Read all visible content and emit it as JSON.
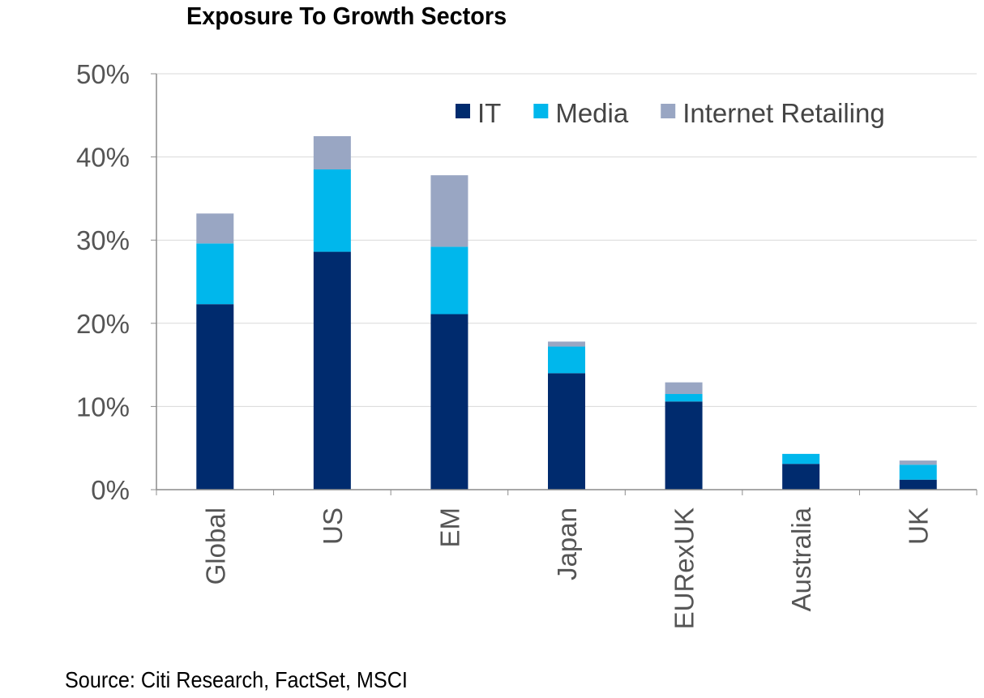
{
  "chart_data": {
    "type": "bar",
    "stacked": true,
    "title": "Exposure To Growth Sectors",
    "categories": [
      "Global",
      "US",
      "EM",
      "Japan",
      "EURexUK",
      "Australia",
      "UK"
    ],
    "series": [
      {
        "name": "IT",
        "color": "#002B6E",
        "values": [
          22.3,
          28.6,
          21.1,
          14.0,
          10.6,
          3.1,
          1.2
        ]
      },
      {
        "name": "Media",
        "color": "#00B7EC",
        "values": [
          7.3,
          9.9,
          8.1,
          3.2,
          0.9,
          1.2,
          1.8
        ]
      },
      {
        "name": "Internet Retailing",
        "color": "#99A6C3",
        "values": [
          3.6,
          4.0,
          8.6,
          0.6,
          1.4,
          0.0,
          0.5
        ]
      }
    ],
    "y_ticks": [
      "0%",
      "10%",
      "20%",
      "30%",
      "40%",
      "50%"
    ],
    "ylim": [
      0,
      50
    ],
    "ylabel": "",
    "xlabel": "",
    "grid": true,
    "legend_position": "top-right"
  },
  "source": "Source: Citi Research, FactSet, MSCI"
}
